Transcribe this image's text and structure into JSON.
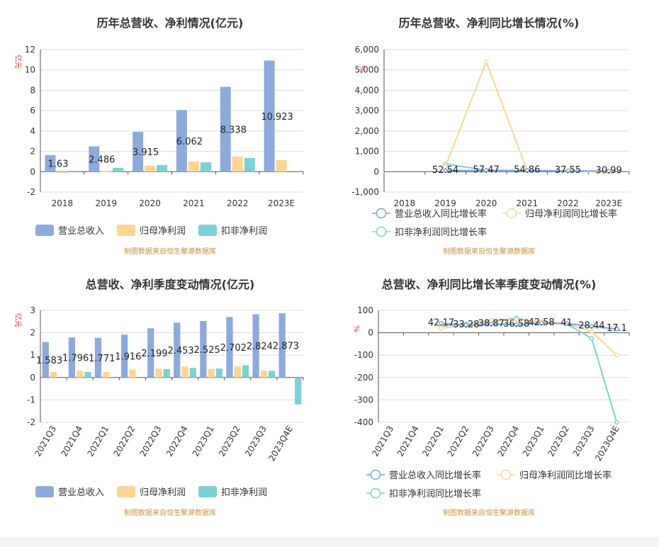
{
  "source_note": "制图数据来自恒生聚源数据库",
  "chart_data": [
    {
      "id": "annual_abs",
      "type": "bar",
      "title": "历年总营收、净利情况(亿元)",
      "ylabel": "亿元",
      "ylim": [
        -2,
        12
      ],
      "yticks": [
        -2,
        0,
        2,
        4,
        6,
        8,
        10,
        12
      ],
      "categories": [
        "2018",
        "2019",
        "2020",
        "2021",
        "2022",
        "2023E"
      ],
      "series": [
        {
          "name": "营业总收入",
          "color": "#8eaadb",
          "values": [
            1.63,
            2.486,
            3.915,
            6.062,
            8.338,
            10.923
          ],
          "labels": [
            "1.63",
            "2.486",
            "3.915",
            "6.062",
            "8.338",
            "10.923"
          ]
        },
        {
          "name": "归母净利润",
          "color": "#fcd592",
          "values": [
            -0.1,
            0.02,
            0.6,
            1.0,
            1.5,
            1.15
          ]
        },
        {
          "name": "扣非净利润",
          "color": "#7dd1d3",
          "values": [
            0.08,
            0.38,
            0.65,
            0.92,
            1.35,
            null
          ]
        }
      ],
      "legend_position": "bottom-left",
      "grid": true
    },
    {
      "id": "annual_pct",
      "type": "line",
      "title": "历年总营收、净利同比增长情况(%)",
      "ylabel": "%",
      "ylim": [
        -1000,
        6000
      ],
      "yticks": [
        -1000,
        0,
        1000,
        2000,
        3000,
        4000,
        5000,
        6000
      ],
      "ytick_labels": [
        "-1,000",
        "0",
        "1,000",
        "2,000",
        "3,000",
        "4,000",
        "5,000",
        "6,000"
      ],
      "categories": [
        "2018",
        "2019",
        "2020",
        "2021",
        "2022",
        "2023E"
      ],
      "series": [
        {
          "name": "营业总收入同比增长率",
          "color": "#7ba4d9",
          "values": [
            null,
            52.54,
            57.47,
            54.86,
            37.55,
            30.99
          ],
          "labels": [
            "",
            "52.54",
            "57.47",
            "54.86",
            "37.55",
            "30.99"
          ]
        },
        {
          "name": "归母净利润同比增长率",
          "color": "#fcd592",
          "values": [
            null,
            250,
            5400,
            65,
            45,
            -25
          ]
        },
        {
          "name": "扣非净利润同比增长率",
          "color": "#7dd1d3",
          "values": [
            null,
            380,
            70,
            42,
            45,
            null
          ]
        }
      ],
      "legend_position": "bottom-left",
      "grid": true
    },
    {
      "id": "quarter_abs",
      "type": "bar",
      "title": "总营收、净利季度变动情况(亿元)",
      "ylabel": "亿元",
      "ylim": [
        -2,
        3
      ],
      "yticks": [
        -2,
        -1,
        0,
        1,
        2,
        3
      ],
      "categories": [
        "2021Q3",
        "2021Q4",
        "2022Q1",
        "2022Q2",
        "2022Q3",
        "2022Q4",
        "2023Q1",
        "2023Q2",
        "2023Q3",
        "2023Q4E"
      ],
      "series": [
        {
          "name": "营业总收入",
          "color": "#8eaadb",
          "values": [
            1.583,
            1.796,
            1.771,
            1.916,
            2.199,
            2.453,
            2.525,
            2.702,
            2.824,
            2.873
          ],
          "labels": [
            "1.583",
            "1.796",
            "1.771",
            "1.916",
            "2.199",
            "2.453",
            "2.525",
            "2.702",
            "2.824",
            "2.873"
          ]
        },
        {
          "name": "归母净利润",
          "color": "#fcd592",
          "values": [
            0.25,
            0.3,
            0.25,
            0.35,
            0.4,
            0.5,
            0.38,
            0.5,
            0.3,
            null
          ]
        },
        {
          "name": "扣非净利润",
          "color": "#7dd1d3",
          "values": [
            null,
            0.25,
            null,
            null,
            0.38,
            0.43,
            0.4,
            0.55,
            0.3,
            -1.2
          ]
        }
      ],
      "legend_position": "bottom-left",
      "grid": true
    },
    {
      "id": "quarter_pct",
      "type": "line",
      "title": "总营收、净利同比增长率季度变动情况(%)",
      "ylabel": "%",
      "ylim": [
        -400,
        100
      ],
      "yticks": [
        -400,
        -300,
        -200,
        -100,
        0,
        100
      ],
      "categories": [
        "2021Q3",
        "2021Q4",
        "2022Q1",
        "2022Q2",
        "2022Q3",
        "2022Q4",
        "2023Q1",
        "2023Q2",
        "2023Q3",
        "2023Q4E"
      ],
      "series": [
        {
          "name": "营业总收入同比增长率",
          "color": "#7ba4d9",
          "values": [
            null,
            null,
            42.17,
            33.28,
            38.87,
            36.58,
            42.58,
            41,
            28.44,
            17.1
          ],
          "labels": [
            "",
            "",
            "42.17",
            "33.28",
            "38.87",
            "36.58",
            "42.58",
            "41",
            "28.44",
            "17.1"
          ]
        },
        {
          "name": "归母净利润同比增长率",
          "color": "#fcd592",
          "values": [
            null,
            null,
            20,
            35,
            55,
            60,
            50,
            40,
            5,
            -100
          ]
        },
        {
          "name": "扣非净利润同比增长率",
          "color": "#7dd1d3",
          "values": [
            null,
            null,
            30,
            40,
            50,
            65,
            45,
            40,
            -25,
            -400
          ]
        }
      ],
      "legend_position": "bottom-left",
      "grid": true
    }
  ]
}
